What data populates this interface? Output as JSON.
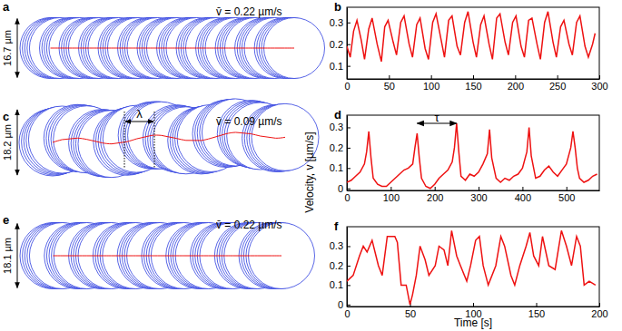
{
  "chart_data": [
    {
      "type": "line",
      "title": "b",
      "x": [
        0,
        4,
        8,
        12,
        17,
        21,
        26,
        30,
        36,
        41,
        45,
        49,
        55,
        59,
        64,
        68,
        74,
        78,
        83,
        87,
        93,
        97,
        102,
        106,
        112,
        116,
        121,
        125,
        131,
        135,
        140,
        144,
        150,
        154,
        159,
        163,
        169,
        173,
        178,
        182,
        188,
        192,
        197,
        201,
        207,
        211,
        216,
        220,
        226,
        230,
        235,
        239,
        245,
        249,
        254,
        258,
        264,
        268,
        273,
        277,
        283,
        287,
        292,
        295
      ],
      "series": [
        {
          "color": "#ee1111",
          "values": [
            0.19,
            0.14,
            0.26,
            0.31,
            0.22,
            0.13,
            0.27,
            0.32,
            0.2,
            0.12,
            0.28,
            0.31,
            0.21,
            0.15,
            0.3,
            0.33,
            0.2,
            0.14,
            0.29,
            0.32,
            0.18,
            0.13,
            0.3,
            0.34,
            0.22,
            0.14,
            0.31,
            0.33,
            0.19,
            0.15,
            0.3,
            0.35,
            0.21,
            0.14,
            0.29,
            0.33,
            0.2,
            0.13,
            0.32,
            0.34,
            0.21,
            0.15,
            0.3,
            0.33,
            0.19,
            0.14,
            0.31,
            0.32,
            0.2,
            0.13,
            0.3,
            0.35,
            0.21,
            0.14,
            0.28,
            0.31,
            0.2,
            0.15,
            0.3,
            0.33,
            0.19,
            0.14,
            0.2,
            0.25
          ]
        }
      ],
      "xlim": [
        0,
        300
      ],
      "ylim": [
        0.04,
        0.37
      ],
      "xticks": [
        0,
        50,
        100,
        150,
        200,
        250,
        300
      ],
      "yticks": [
        0.1,
        0.2,
        0.3
      ]
    },
    {
      "type": "line",
      "title": "d",
      "ylabel": "Velocity, v [µm/s]",
      "x": [
        0,
        10,
        20,
        30,
        40,
        45,
        50,
        55,
        60,
        70,
        80,
        90,
        100,
        110,
        120,
        130,
        140,
        150,
        155,
        160,
        165,
        170,
        180,
        190,
        200,
        210,
        220,
        230,
        240,
        245,
        250,
        255,
        260,
        270,
        280,
        290,
        300,
        310,
        320,
        325,
        330,
        340,
        350,
        360,
        370,
        380,
        390,
        400,
        410,
        415,
        420,
        430,
        440,
        450,
        460,
        470,
        480,
        490,
        500,
        510,
        515,
        520,
        525,
        530,
        540,
        550,
        560,
        570
      ],
      "series": [
        {
          "color": "#ee1111",
          "values": [
            0.03,
            0.04,
            0.06,
            0.08,
            0.12,
            0.18,
            0.28,
            0.15,
            0.05,
            0.02,
            0.01,
            0.01,
            0.03,
            0.05,
            0.07,
            0.09,
            0.1,
            0.12,
            0.2,
            0.27,
            0.15,
            0.05,
            0.01,
            0.0,
            0.02,
            0.05,
            0.07,
            0.09,
            0.13,
            0.2,
            0.32,
            0.18,
            0.06,
            0.04,
            0.07,
            0.06,
            0.08,
            0.12,
            0.17,
            0.29,
            0.15,
            0.05,
            0.03,
            0.05,
            0.04,
            0.06,
            0.07,
            0.1,
            0.18,
            0.3,
            0.16,
            0.05,
            0.06,
            0.09,
            0.11,
            0.08,
            0.06,
            0.09,
            0.12,
            0.2,
            0.28,
            0.2,
            0.1,
            0.05,
            0.03,
            0.04,
            0.06,
            0.07
          ]
        }
      ],
      "annotations": [
        {
          "text": "τ",
          "x": [
            160,
            250
          ]
        }
      ],
      "xlim": [
        0,
        575
      ],
      "ylim": [
        -0.01,
        0.36
      ],
      "xticks": [
        0,
        100,
        200,
        300,
        400,
        500
      ],
      "yticks": [
        0,
        0.1,
        0.2,
        0.3
      ]
    },
    {
      "type": "line",
      "title": "f",
      "xlabel": "Time [s]",
      "x": [
        0,
        5,
        10,
        13,
        16,
        20,
        25,
        28,
        32,
        38,
        40,
        43,
        47,
        50,
        52,
        55,
        58,
        62,
        65,
        70,
        73,
        77,
        80,
        83,
        87,
        90,
        95,
        98,
        102,
        105,
        108,
        112,
        118,
        122,
        125,
        130,
        133,
        137,
        142,
        145,
        148,
        152,
        155,
        160,
        165,
        168,
        170,
        174,
        178,
        182,
        185,
        188,
        192,
        197
      ],
      "series": [
        {
          "color": "#ee1111",
          "values": [
            0.12,
            0.15,
            0.25,
            0.3,
            0.27,
            0.33,
            0.2,
            0.15,
            0.35,
            0.35,
            0.32,
            0.1,
            0.1,
            0.0,
            0.05,
            0.15,
            0.3,
            0.23,
            0.15,
            0.2,
            0.3,
            0.28,
            0.2,
            0.38,
            0.25,
            0.2,
            0.12,
            0.2,
            0.33,
            0.35,
            0.2,
            0.1,
            0.2,
            0.35,
            0.3,
            0.15,
            0.1,
            0.2,
            0.3,
            0.37,
            0.25,
            0.2,
            0.35,
            0.2,
            0.18,
            0.3,
            0.38,
            0.3,
            0.2,
            0.35,
            0.3,
            0.1,
            0.12,
            0.1
          ]
        }
      ],
      "xlim": [
        0,
        200
      ],
      "ylim": [
        -0.01,
        0.4
      ],
      "xticks": [
        0,
        50,
        100,
        150,
        200
      ],
      "yticks": [
        0,
        0.1,
        0.2,
        0.3
      ]
    }
  ],
  "trajectories": [
    {
      "label": "a",
      "mean_velocity": "v̄ = 0.22 µm/s",
      "diameter": "16.7 µm"
    },
    {
      "label": "c",
      "mean_velocity": "v̄ = 0.09 µm/s",
      "diameter": "18.2 µm",
      "annotation": "λ"
    },
    {
      "label": "e",
      "mean_velocity": "v̄ = 0.22 µm/s",
      "diameter": "18.1 µm"
    }
  ]
}
